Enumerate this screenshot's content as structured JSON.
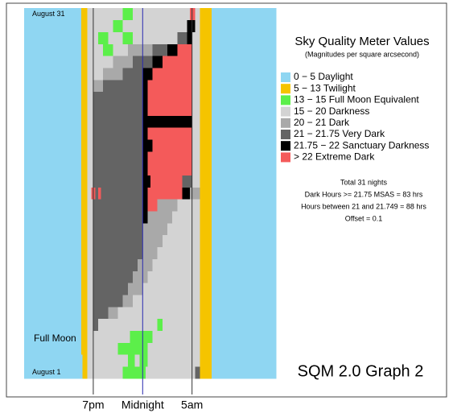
{
  "chart_data": {
    "type": "heatmap",
    "title": "Sky Quality Meter Values",
    "subtitle": "(Magnitudes per square arcsecond)",
    "classes": [
      {
        "name": "0 − 5 Daylight",
        "color": "#8fd6f2"
      },
      {
        "name": "5 − 13 Twilight",
        "color": "#f5c400"
      },
      {
        "name": "13 − 15 Full Moon Equivalent",
        "color": "#5cef4a"
      },
      {
        "name": "15 − 20 Darkness",
        "color": "#d3d3d3"
      },
      {
        "name": "20 − 21 Dark",
        "color": "#a9a9a9"
      },
      {
        "name": "21 − 21.75 Very Dark",
        "color": "#646464"
      },
      {
        "name": "21.75 − 22 Sanctuary Darkness",
        "color": "#000000"
      },
      {
        "name": "> 22 Extreme Dark",
        "color": "#f45a5a"
      }
    ],
    "notes": [
      "Total 31 nights",
      "Dark Hours >= 21.75 MSAS = 83 hrs",
      "Hours between 21 and 21.749 = 88 hrs",
      "Offset = 0.1"
    ],
    "footer": "SQM 2.0 Graph 2",
    "annotations": [
      {
        "text": "August 31",
        "row": 30
      },
      {
        "text": "Full Moon",
        "row": 2.8
      },
      {
        "text": "August 1",
        "row": 0
      }
    ],
    "xlim": [
      12,
      37.5
    ],
    "xticks": [
      {
        "value": 19,
        "label": "7pm"
      },
      {
        "value": 24,
        "label": "Midnight"
      },
      {
        "value": 29,
        "label": "5am"
      }
    ],
    "xtick_line_colors": [
      "#333333",
      "#2a2ab0",
      "#333333"
    ],
    "nights": [
      {
        "segments": [
          [
            12,
            0
          ],
          [
            17.9,
            1
          ],
          [
            18.4,
            3
          ],
          [
            22,
            2
          ],
          [
            24.3,
            3
          ],
          [
            29.3,
            5
          ],
          [
            29.8,
            1
          ],
          [
            31,
            0
          ]
        ]
      },
      {
        "segments": [
          [
            12,
            0
          ],
          [
            17.9,
            1
          ],
          [
            18.4,
            3
          ],
          [
            22.5,
            2
          ],
          [
            23.2,
            3
          ],
          [
            23.7,
            2
          ],
          [
            24.5,
            3
          ],
          [
            29.8,
            1
          ],
          [
            31,
            0
          ]
        ]
      },
      {
        "segments": [
          [
            12,
            0
          ],
          [
            17.8,
            1
          ],
          [
            18.4,
            3
          ],
          [
            21.5,
            2
          ],
          [
            24.5,
            3
          ],
          [
            29.8,
            1
          ],
          [
            31,
            0
          ]
        ]
      },
      {
        "segments": [
          [
            12,
            0
          ],
          [
            17.8,
            1
          ],
          [
            18.4,
            3
          ],
          [
            22.7,
            2
          ],
          [
            25,
            3
          ],
          [
            29.8,
            1
          ],
          [
            31,
            0
          ]
        ]
      },
      {
        "segments": [
          [
            12,
            0
          ],
          [
            17.8,
            1
          ],
          [
            18.4,
            3
          ],
          [
            19,
            5
          ],
          [
            19.5,
            3
          ],
          [
            25.5,
            2
          ],
          [
            26,
            3
          ],
          [
            29.8,
            1
          ],
          [
            31,
            0
          ]
        ]
      },
      {
        "segments": [
          [
            12,
            0
          ],
          [
            17.8,
            1
          ],
          [
            18.4,
            3
          ],
          [
            19,
            5
          ],
          [
            20.5,
            4
          ],
          [
            21.5,
            3
          ],
          [
            29.8,
            1
          ],
          [
            31,
            0
          ]
        ]
      },
      {
        "segments": [
          [
            12,
            0
          ],
          [
            17.8,
            1
          ],
          [
            18.4,
            3
          ],
          [
            19,
            5
          ],
          [
            22,
            4
          ],
          [
            23,
            3
          ],
          [
            29.8,
            1
          ],
          [
            31,
            0
          ]
        ]
      },
      {
        "segments": [
          [
            12,
            0
          ],
          [
            17.8,
            1
          ],
          [
            18.4,
            3
          ],
          [
            19,
            5
          ],
          [
            22.5,
            4
          ],
          [
            24,
            3
          ],
          [
            29.8,
            1
          ],
          [
            31,
            0
          ]
        ]
      },
      {
        "segments": [
          [
            12,
            0
          ],
          [
            17.8,
            1
          ],
          [
            18.4,
            3
          ],
          [
            19,
            5
          ],
          [
            23,
            4
          ],
          [
            24.5,
            3
          ],
          [
            29.8,
            1
          ],
          [
            31,
            0
          ]
        ]
      },
      {
        "segments": [
          [
            12,
            0
          ],
          [
            17.8,
            1
          ],
          [
            18.4,
            3
          ],
          [
            19,
            5
          ],
          [
            23.5,
            4
          ],
          [
            25,
            3
          ],
          [
            29.8,
            1
          ],
          [
            31,
            0
          ]
        ]
      },
      {
        "segments": [
          [
            12,
            0
          ],
          [
            17.8,
            1
          ],
          [
            18.4,
            3
          ],
          [
            19,
            5
          ],
          [
            24,
            4
          ],
          [
            25.5,
            3
          ],
          [
            29.8,
            1
          ],
          [
            31,
            0
          ]
        ]
      },
      {
        "segments": [
          [
            12,
            0
          ],
          [
            17.8,
            1
          ],
          [
            18.4,
            3
          ],
          [
            19,
            5
          ],
          [
            24,
            4
          ],
          [
            26,
            3
          ],
          [
            29.8,
            1
          ],
          [
            31,
            0
          ]
        ]
      },
      {
        "segments": [
          [
            12,
            0
          ],
          [
            17.8,
            1
          ],
          [
            18.4,
            3
          ],
          [
            19,
            5
          ],
          [
            24,
            4
          ],
          [
            26.5,
            3
          ],
          [
            29.8,
            1
          ],
          [
            31,
            0
          ]
        ]
      },
      {
        "segments": [
          [
            12,
            0
          ],
          [
            17.8,
            1
          ],
          [
            18.4,
            3
          ],
          [
            19,
            5
          ],
          [
            24,
            6
          ],
          [
            24.5,
            4
          ],
          [
            27,
            3
          ],
          [
            29.8,
            1
          ],
          [
            31,
            0
          ]
        ]
      },
      {
        "segments": [
          [
            12,
            0
          ],
          [
            17.8,
            1
          ],
          [
            18.4,
            3
          ],
          [
            19,
            5
          ],
          [
            24,
            6
          ],
          [
            24.5,
            7
          ],
          [
            25.5,
            4
          ],
          [
            27.5,
            3
          ],
          [
            29.8,
            1
          ],
          [
            31,
            0
          ]
        ]
      },
      {
        "segments": [
          [
            12,
            0
          ],
          [
            17.8,
            1
          ],
          [
            18.4,
            3
          ],
          [
            18.8,
            7
          ],
          [
            19.2,
            5
          ],
          [
            19.5,
            7
          ],
          [
            19.8,
            5
          ],
          [
            24,
            6
          ],
          [
            24.5,
            7
          ],
          [
            28,
            6
          ],
          [
            28.8,
            4
          ],
          [
            29.8,
            1
          ],
          [
            31,
            0
          ]
        ]
      },
      {
        "segments": [
          [
            12,
            0
          ],
          [
            17.8,
            1
          ],
          [
            18.4,
            3
          ],
          [
            19,
            5
          ],
          [
            24,
            6
          ],
          [
            24.8,
            7
          ],
          [
            28,
            5
          ],
          [
            29,
            3
          ],
          [
            29.8,
            1
          ],
          [
            31,
            0
          ]
        ]
      },
      {
        "segments": [
          [
            12,
            0
          ],
          [
            17.8,
            1
          ],
          [
            18.4,
            3
          ],
          [
            19,
            5
          ],
          [
            24,
            6
          ],
          [
            24.5,
            7
          ],
          [
            29,
            3
          ],
          [
            29.8,
            1
          ],
          [
            31,
            0
          ]
        ]
      },
      {
        "segments": [
          [
            12,
            0
          ],
          [
            17.8,
            1
          ],
          [
            18.4,
            3
          ],
          [
            19,
            5
          ],
          [
            24,
            6
          ],
          [
            24.5,
            7
          ],
          [
            29,
            3
          ],
          [
            29.8,
            1
          ],
          [
            31,
            0
          ]
        ]
      },
      {
        "segments": [
          [
            12,
            0
          ],
          [
            17.8,
            1
          ],
          [
            18.4,
            3
          ],
          [
            19,
            5
          ],
          [
            24,
            6
          ],
          [
            25,
            7
          ],
          [
            29,
            3
          ],
          [
            29.8,
            1
          ],
          [
            31,
            0
          ]
        ]
      },
      {
        "segments": [
          [
            12,
            0
          ],
          [
            17.8,
            1
          ],
          [
            18.4,
            3
          ],
          [
            19,
            5
          ],
          [
            24,
            6
          ],
          [
            24.5,
            7
          ],
          [
            29,
            3
          ],
          [
            29.8,
            1
          ],
          [
            31,
            0
          ]
        ]
      },
      {
        "segments": [
          [
            12,
            0
          ],
          [
            17.8,
            1
          ],
          [
            18.4,
            3
          ],
          [
            19,
            5
          ],
          [
            24,
            6
          ],
          [
            29,
            3
          ],
          [
            29.8,
            1
          ],
          [
            31,
            0
          ]
        ]
      },
      {
        "segments": [
          [
            12,
            0
          ],
          [
            17.8,
            1
          ],
          [
            18.4,
            3
          ],
          [
            19,
            5
          ],
          [
            24,
            6
          ],
          [
            24.5,
            7
          ],
          [
            29,
            3
          ],
          [
            29.8,
            1
          ],
          [
            31,
            0
          ]
        ]
      },
      {
        "segments": [
          [
            12,
            0
          ],
          [
            17.8,
            1
          ],
          [
            18.4,
            3
          ],
          [
            19,
            5
          ],
          [
            24,
            6
          ],
          [
            24.5,
            7
          ],
          [
            29,
            3
          ],
          [
            29.8,
            1
          ],
          [
            31,
            0
          ]
        ]
      },
      {
        "segments": [
          [
            12,
            0
          ],
          [
            17.8,
            1
          ],
          [
            18.4,
            3
          ],
          [
            19,
            4
          ],
          [
            20,
            5
          ],
          [
            24,
            6
          ],
          [
            24.5,
            7
          ],
          [
            29,
            3
          ],
          [
            29.8,
            1
          ],
          [
            31,
            0
          ]
        ]
      },
      {
        "segments": [
          [
            12,
            0
          ],
          [
            17.8,
            1
          ],
          [
            18.4,
            3
          ],
          [
            20,
            4
          ],
          [
            22,
            5
          ],
          [
            24,
            6
          ],
          [
            25,
            7
          ],
          [
            29,
            3
          ],
          [
            29.8,
            1
          ],
          [
            31,
            0
          ]
        ]
      },
      {
        "segments": [
          [
            12,
            0
          ],
          [
            17.8,
            1
          ],
          [
            18.4,
            3
          ],
          [
            21,
            4
          ],
          [
            23,
            5
          ],
          [
            25,
            6
          ],
          [
            26,
            7
          ],
          [
            29,
            3
          ],
          [
            29.8,
            1
          ],
          [
            31,
            0
          ]
        ]
      },
      {
        "segments": [
          [
            12,
            0
          ],
          [
            17.8,
            1
          ],
          [
            18.4,
            3
          ],
          [
            20,
            2
          ],
          [
            21,
            3
          ],
          [
            22.5,
            4
          ],
          [
            25,
            5
          ],
          [
            26.5,
            6
          ],
          [
            27.5,
            7
          ],
          [
            29,
            3
          ],
          [
            29.8,
            1
          ],
          [
            31,
            0
          ]
        ]
      },
      {
        "segments": [
          [
            12,
            0
          ],
          [
            17.8,
            1
          ],
          [
            18.4,
            3
          ],
          [
            19.5,
            2
          ],
          [
            20.5,
            3
          ],
          [
            22,
            2
          ],
          [
            23,
            3
          ],
          [
            27.5,
            5
          ],
          [
            28.5,
            6
          ],
          [
            29,
            3
          ],
          [
            29.8,
            1
          ],
          [
            31,
            0
          ]
        ]
      },
      {
        "segments": [
          [
            12,
            0
          ],
          [
            17.8,
            1
          ],
          [
            18.4,
            3
          ],
          [
            21,
            2
          ],
          [
            22,
            3
          ],
          [
            28.5,
            6
          ],
          [
            29.3,
            3
          ],
          [
            29.8,
            1
          ],
          [
            31,
            0
          ]
        ]
      },
      {
        "segments": [
          [
            12,
            0
          ],
          [
            17.8,
            1
          ],
          [
            18.4,
            3
          ],
          [
            22,
            2
          ],
          [
            23,
            3
          ],
          [
            28.8,
            7
          ],
          [
            29.3,
            3
          ],
          [
            29.8,
            1
          ],
          [
            31,
            0
          ]
        ]
      }
    ]
  }
}
